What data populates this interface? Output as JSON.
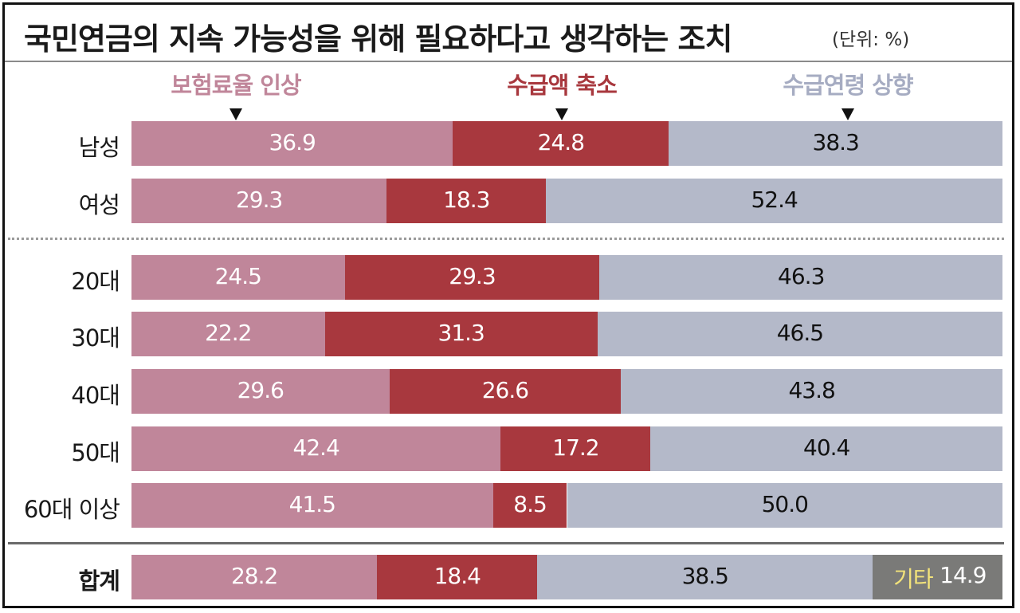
{
  "chart_data": {
    "type": "bar",
    "stacked": true,
    "orientation": "horizontal",
    "title": "국민연금의 지속 가능성을 위해 필요하다고 생각하는 조치",
    "unit": "(단위: %)",
    "categories": [
      "남성",
      "여성",
      "20대",
      "30대",
      "40대",
      "50대",
      "60대 이상",
      "합계"
    ],
    "series": [
      {
        "name": "보험료율 인상",
        "color": "#c0869a",
        "values": [
          36.9,
          29.3,
          24.5,
          22.2,
          29.6,
          42.4,
          41.5,
          28.2
        ]
      },
      {
        "name": "수급액 축소",
        "color": "#a8383e",
        "values": [
          24.8,
          18.3,
          29.3,
          31.3,
          26.6,
          17.2,
          8.5,
          18.4
        ]
      },
      {
        "name": "수급연령 상향",
        "color": "#b4b9c9",
        "values": [
          38.3,
          52.4,
          46.3,
          46.5,
          43.8,
          40.4,
          50.0,
          38.5
        ]
      }
    ],
    "other": {
      "label": "기타",
      "category": "합계",
      "value": 14.9,
      "color": "#7a7a78",
      "label_color": "#f3e37a"
    },
    "value_labels": {
      "보험료율 인상": [
        "36.9",
        "29.3",
        "24.5",
        "22.2",
        "29.6",
        "42.4",
        "41.5",
        "28.2"
      ],
      "수급액 축소": [
        "24.8",
        "18.3",
        "29.3",
        "31.3",
        "26.6",
        "17.2",
        "8.5",
        "18.4"
      ],
      "수급연령 상향": [
        "38.3",
        "52.4",
        "46.3",
        "46.5",
        "43.8",
        "40.4",
        "50.0",
        "38.5"
      ],
      "기타": "14.9"
    },
    "xlim": [
      0,
      100
    ],
    "legend_placement": "top",
    "grid": false
  }
}
